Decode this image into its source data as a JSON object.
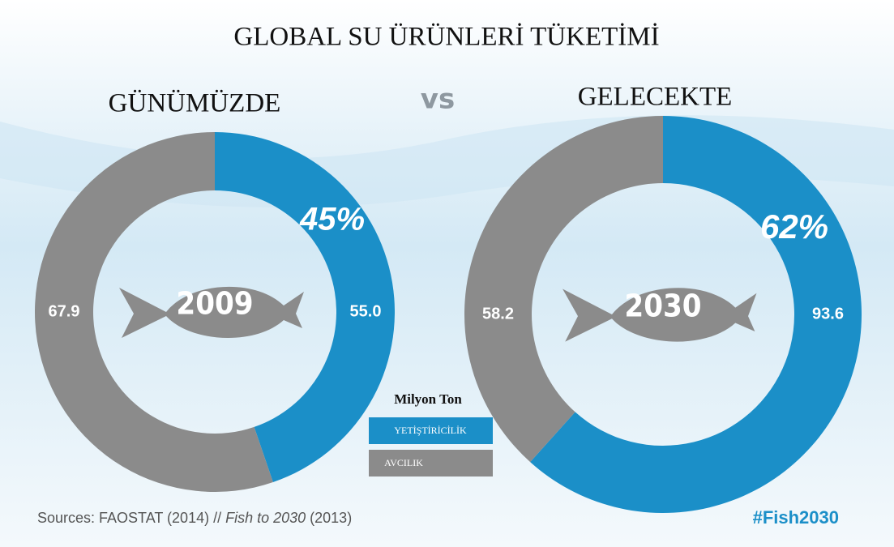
{
  "title": "GLOBAL SU ÜRÜNLERİ TÜKETİMİ",
  "versus": "vs",
  "legend": {
    "title": "Milyon Ton"
  },
  "source": [
    "Sources: FAOSTAT (2014) // ",
    "Fish to 2030",
    " (2013)"
  ],
  "hashtag": "#Fish2030",
  "chart_data": [
    {
      "type": "donut",
      "title": "GÜNÜMÜZDE",
      "center_label": "2009",
      "categories": [
        "YETİŞTİRİCİLİK",
        "AVCILIK"
      ],
      "values": [
        55.0,
        67.9
      ],
      "value_labels": [
        "55.0",
        "67.9"
      ],
      "colors": [
        "#1b8fc8",
        "#8b8b8b"
      ],
      "share_label": "45%"
    },
    {
      "type": "donut",
      "title": "GELECEKTE",
      "center_label": "2030",
      "categories": [
        "YETİŞTİRİCİLİK",
        "AVCILIK"
      ],
      "values": [
        93.6,
        58.2
      ],
      "value_labels": [
        "93.6",
        "58.2"
      ],
      "colors": [
        "#1b8fc8",
        "#8b8b8b"
      ],
      "share_label": "62%"
    }
  ]
}
